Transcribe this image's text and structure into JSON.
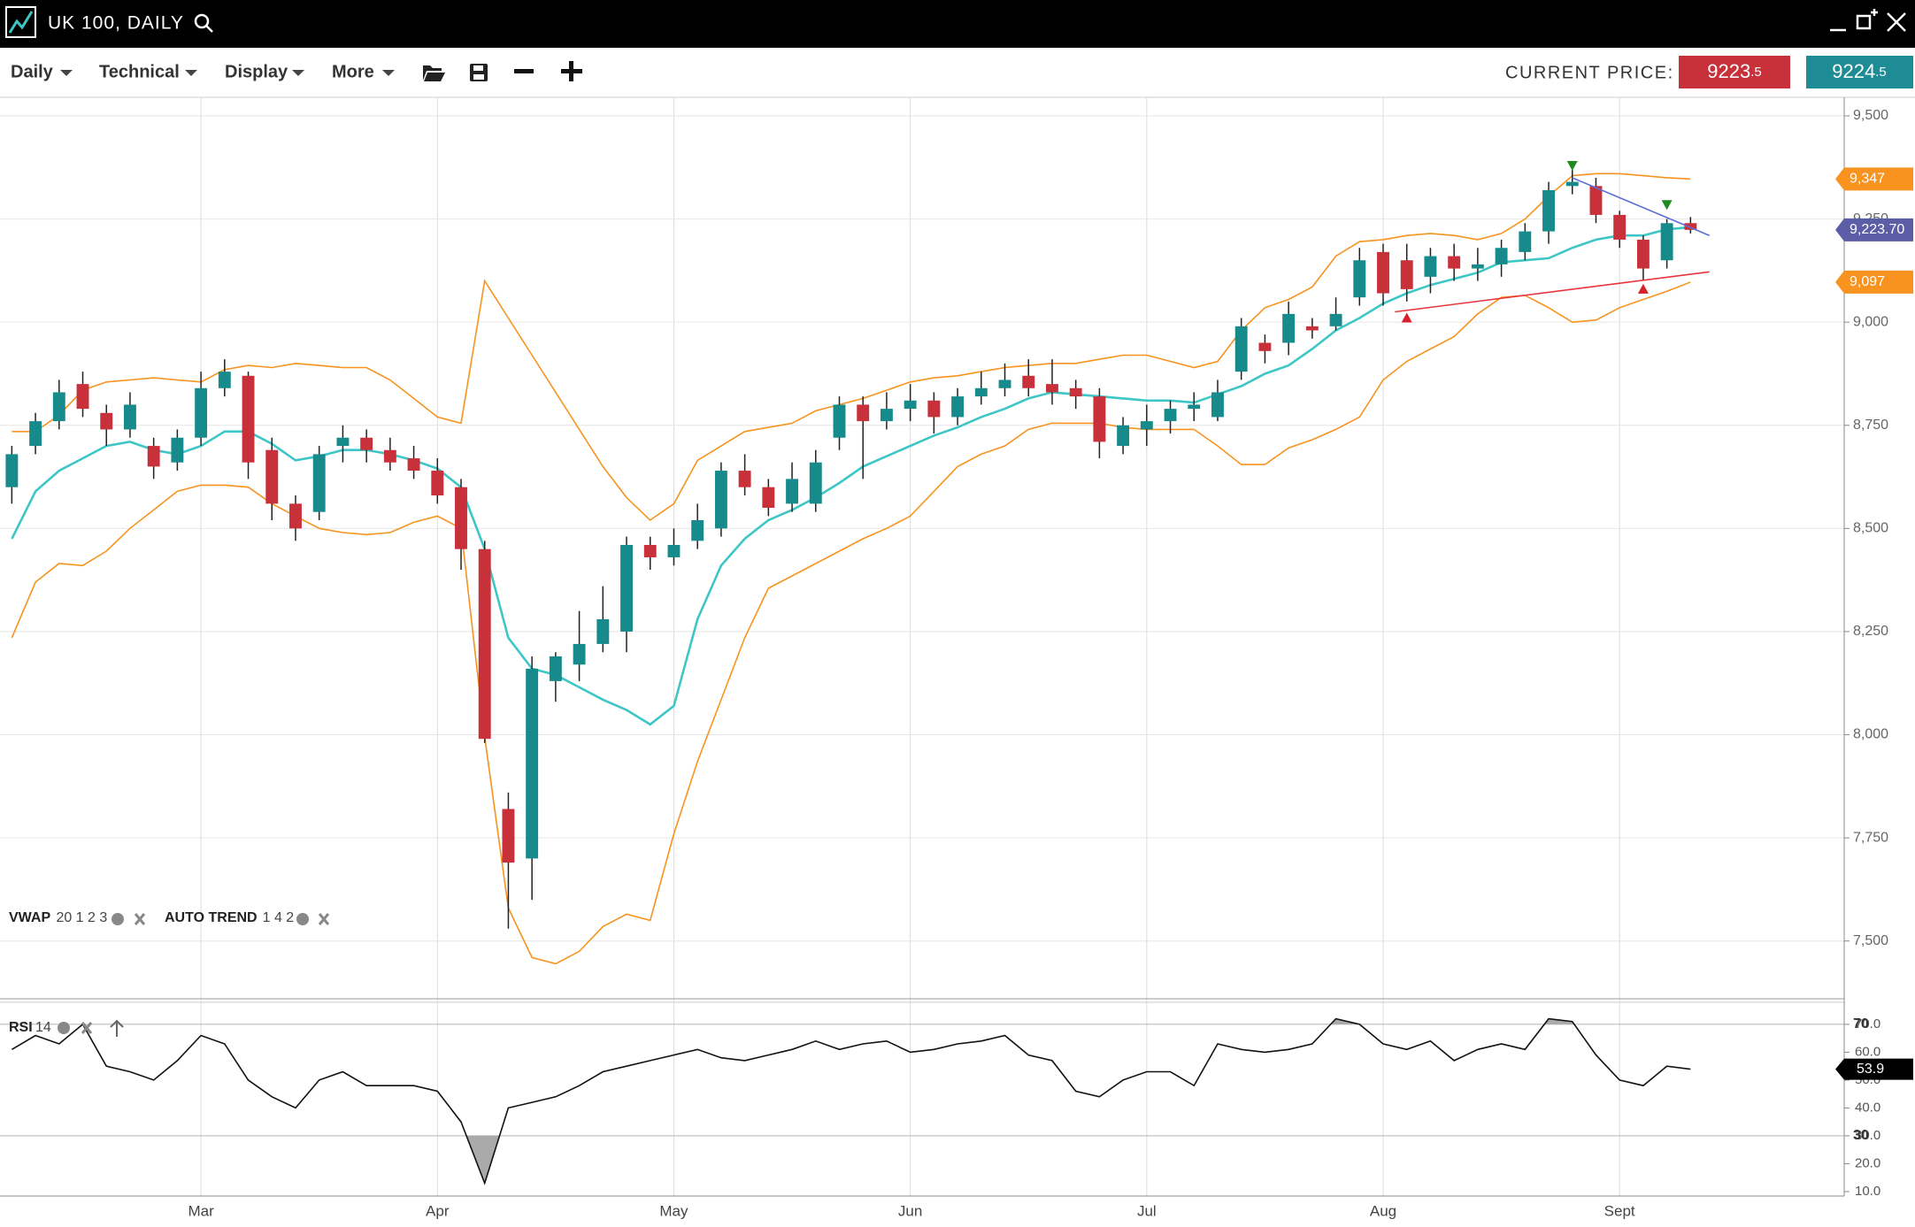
{
  "header": {
    "title": "UK 100, DAILY"
  },
  "toolbar": {
    "menus": [
      "Daily",
      "Technical",
      "Display",
      "More"
    ],
    "current_price_label": "CURRENT PRICE:",
    "bid": 9223.5,
    "ask": 9224.5
  },
  "chart_data": {
    "type": "candlestick",
    "categories": [
      null,
      null,
      null,
      null,
      null,
      null,
      null,
      null,
      "Mar",
      null,
      null,
      null,
      null,
      null,
      null,
      null,
      null,
      null,
      "Apr",
      null,
      null,
      null,
      null,
      null,
      null,
      null,
      null,
      null,
      "May",
      null,
      null,
      null,
      null,
      null,
      null,
      null,
      null,
      null,
      "Jun",
      null,
      null,
      null,
      null,
      null,
      null,
      null,
      null,
      null,
      "Jul",
      null,
      null,
      null,
      null,
      null,
      null,
      null,
      null,
      null,
      "Aug",
      null,
      null,
      null,
      null,
      null,
      null,
      null,
      null,
      null,
      "Sept",
      null,
      null,
      null
    ],
    "open": [
      8600,
      8700,
      8760,
      8850,
      8780,
      8740,
      8700,
      8660,
      8720,
      8840,
      8870,
      8690,
      8560,
      8540,
      8700,
      8720,
      8690,
      8670,
      8640,
      8600,
      8450,
      7820,
      7700,
      8130,
      8170,
      8220,
      8250,
      8460,
      8430,
      8470,
      8500,
      8640,
      8600,
      8560,
      8560,
      8720,
      8800,
      8760,
      8790,
      8810,
      8770,
      8820,
      8840,
      8870,
      8850,
      8840,
      8820,
      8700,
      8740,
      8760,
      8790,
      8770,
      8880,
      8950,
      8950,
      8990,
      8990,
      9060,
      9170,
      9150,
      9110,
      9160,
      9130,
      9140,
      9170,
      9220,
      9330,
      9330,
      9260,
      9200,
      9150,
      9240
    ],
    "high": [
      8700,
      8780,
      8860,
      8880,
      8800,
      8830,
      8720,
      8740,
      8880,
      8910,
      8880,
      8720,
      8580,
      8700,
      8750,
      8740,
      8720,
      8700,
      8670,
      8620,
      8470,
      7860,
      8190,
      8200,
      8300,
      8360,
      8480,
      8480,
      8500,
      8560,
      8660,
      8680,
      8620,
      8660,
      8690,
      8820,
      8820,
      8830,
      8850,
      8830,
      8840,
      8880,
      8900,
      8910,
      8910,
      8860,
      8840,
      8770,
      8800,
      8810,
      8830,
      8860,
      9010,
      8970,
      9050,
      9010,
      9060,
      9180,
      9190,
      9190,
      9180,
      9190,
      9180,
      9200,
      9240,
      9340,
      9370,
      9350,
      9270,
      9210,
      9250,
      9255
    ],
    "low": [
      8560,
      8680,
      8740,
      8770,
      8700,
      8720,
      8620,
      8640,
      8700,
      8820,
      8620,
      8520,
      8470,
      8520,
      8660,
      8660,
      8640,
      8620,
      8560,
      8400,
      7980,
      7530,
      7600,
      8080,
      8130,
      8200,
      8200,
      8400,
      8410,
      8450,
      8480,
      8580,
      8530,
      8540,
      8540,
      8690,
      8620,
      8740,
      8760,
      8730,
      8750,
      8800,
      8820,
      8820,
      8800,
      8790,
      8670,
      8680,
      8700,
      8730,
      8760,
      8760,
      8860,
      8900,
      8920,
      8960,
      8980,
      9040,
      9040,
      9050,
      9070,
      9100,
      9100,
      9110,
      9150,
      9190,
      9310,
      9240,
      9180,
      9100,
      9130,
      9215
    ],
    "close": [
      8680,
      8760,
      8830,
      8790,
      8740,
      8800,
      8650,
      8720,
      8840,
      8880,
      8660,
      8560,
      8500,
      8680,
      8720,
      8690,
      8660,
      8640,
      8580,
      8450,
      7990,
      7690,
      8160,
      8190,
      8220,
      8280,
      8460,
      8430,
      8460,
      8520,
      8640,
      8600,
      8550,
      8620,
      8660,
      8800,
      8760,
      8790,
      8810,
      8770,
      8820,
      8840,
      8860,
      8840,
      8830,
      8820,
      8710,
      8750,
      8760,
      8790,
      8800,
      8830,
      8990,
      8930,
      9020,
      8980,
      9020,
      9150,
      9070,
      9080,
      9160,
      9130,
      9140,
      9180,
      9220,
      9320,
      9340,
      9260,
      9200,
      9130,
      9240,
      9223.7
    ],
    "colors": {
      "up": "#178b8c",
      "down": "#c8303a"
    },
    "overlays": [
      {
        "name": "VWAP",
        "params": "20 1 2 3",
        "series": [
          {
            "color": "#3ec6c6",
            "values": [
              8475,
              8590,
              8640,
              8670,
              8700,
              8710,
              8690,
              8680,
              8700,
              8735,
              8735,
              8705,
              8665,
              8675,
              8690,
              8690,
              8680,
              8665,
              8645,
              8600,
              8450,
              8235,
              8160,
              8145,
              8115,
              8085,
              8060,
              8025,
              8070,
              8280,
              8410,
              8475,
              8520,
              8545,
              8575,
              8610,
              8650,
              8675,
              8700,
              8725,
              8745,
              8770,
              8790,
              8815,
              8830,
              8825,
              8820,
              8815,
              8810,
              8810,
              8805,
              8825,
              8845,
              8875,
              8895,
              8935,
              8980,
              9010,
              9045,
              9070,
              9090,
              9105,
              9120,
              9145,
              9150,
              9155,
              9180,
              9200,
              9210,
              9210,
              9225,
              9230
            ]
          },
          {
            "color": "#f7931e",
            "values": [
              8735,
              8735,
              8775,
              8835,
              8855,
              8860,
              8865,
              8860,
              8855,
              8885,
              8895,
              8890,
              8900,
              8895,
              8890,
              8890,
              8860,
              8815,
              8770,
              8755,
              9100,
              9010,
              8920,
              8830,
              8740,
              8650,
              8575,
              8520,
              8560,
              8665,
              8700,
              8735,
              8745,
              8755,
              8785,
              8800,
              8815,
              8835,
              8855,
              8865,
              8870,
              8880,
              8890,
              8895,
              8900,
              8900,
              8910,
              8920,
              8920,
              8905,
              8890,
              8905,
              8980,
              9035,
              9055,
              9085,
              9160,
              9195,
              9200,
              9210,
              9215,
              9210,
              9200,
              9215,
              9250,
              9305,
              9355,
              9360,
              9360,
              9355,
              9350,
              9347
            ]
          },
          {
            "color": "#f7931e",
            "values": [
              8235,
              8370,
              8415,
              8410,
              8445,
              8500,
              8545,
              8590,
              8605,
              8605,
              8600,
              8560,
              8530,
              8500,
              8490,
              8485,
              8490,
              8515,
              8530,
              8500,
              7995,
              7580,
              7460,
              7445,
              7475,
              7535,
              7565,
              7550,
              7760,
              7935,
              8085,
              8235,
              8355,
              8385,
              8415,
              8445,
              8475,
              8500,
              8530,
              8590,
              8650,
              8680,
              8700,
              8740,
              8755,
              8755,
              8755,
              8745,
              8740,
              8740,
              8740,
              8700,
              8655,
              8655,
              8695,
              8715,
              8740,
              8770,
              8860,
              8905,
              8935,
              8965,
              9020,
              9060,
              9065,
              9035,
              9000,
              9005,
              9035,
              9055,
              9075,
              9097
            ]
          }
        ]
      },
      {
        "name": "AUTO TREND",
        "params": "1 4 2",
        "trendlines": [
          {
            "color": "#5b6fd6",
            "x": [
              66,
              71.8
            ],
            "y": [
              9350,
              9210
            ]
          },
          {
            "color": "#e8343c",
            "x": [
              58.5,
              71.8
            ],
            "y": [
              9025,
              9122
            ]
          }
        ],
        "pivot_highs": {
          "color": "#1f8a1f",
          "x": [
            66,
            70
          ],
          "y": [
            9380,
            9285
          ]
        },
        "pivot_lows": {
          "color": "#d8202a",
          "x": [
            59,
            69
          ],
          "y": [
            9010,
            9080
          ]
        }
      }
    ],
    "ylim": [
      7360,
      9545
    ],
    "yticks": [
      {
        "value": 7500,
        "label": "7,500"
      },
      {
        "value": 7750,
        "label": "7,750"
      },
      {
        "value": 8000,
        "label": "8,000"
      },
      {
        "value": 8250,
        "label": "8,250"
      },
      {
        "value": 8500,
        "label": "8,500"
      },
      {
        "value": 8750,
        "label": "8,750"
      },
      {
        "value": 9000,
        "label": "9,000"
      },
      {
        "value": 9250,
        "label": "9,250"
      },
      {
        "value": 9500,
        "label": "9,500"
      }
    ],
    "grid": true,
    "price_tags": [
      {
        "value": 9347,
        "label": "9,347",
        "color": "#f7931e"
      },
      {
        "value": 9223.7,
        "label": "9,223.70",
        "color": "#5b5ea6"
      },
      {
        "value": 9097,
        "label": "9,097",
        "color": "#f7931e"
      }
    ],
    "rsi": {
      "type": "line",
      "name": "RSI",
      "params": "14",
      "color": "#111111",
      "fill": "#aaaaaa",
      "values": [
        61,
        66,
        63,
        70,
        55,
        53,
        50,
        57,
        66,
        63,
        50,
        44,
        40,
        50,
        53,
        48,
        48,
        48,
        46,
        35,
        13,
        40,
        42,
        44,
        48,
        53,
        55,
        57,
        59,
        61,
        58,
        57,
        59,
        61,
        64,
        61,
        63,
        64,
        60,
        61,
        63,
        64,
        66,
        59,
        57,
        46,
        44,
        50,
        53,
        53,
        48,
        63,
        61,
        60,
        61,
        63,
        72,
        70,
        63,
        61,
        64,
        57,
        61,
        63,
        61,
        72,
        71,
        59,
        50,
        48,
        55,
        53.9
      ],
      "ylim": [
        8.4,
        77.9
      ],
      "yticks": [
        {
          "value": 70,
          "label": "70.0"
        },
        {
          "value": 60,
          "label": "60.0"
        },
        {
          "value": 50,
          "label": "50.0"
        },
        {
          "value": 40,
          "label": "40.0"
        },
        {
          "value": 30,
          "label": "30.0"
        },
        {
          "value": 20,
          "label": "20.0"
        },
        {
          "value": 10,
          "label": "10.0"
        }
      ],
      "levels": [
        70,
        30
      ]
    }
  }
}
